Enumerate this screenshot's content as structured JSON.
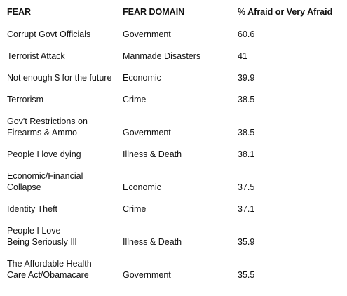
{
  "table": {
    "headers": [
      "FEAR",
      "FEAR DOMAIN",
      "% Afraid or Very Afraid"
    ],
    "rows": [
      {
        "fear": [
          "Corrupt Govt Officials"
        ],
        "domain": "Government",
        "percent": "60.6"
      },
      {
        "fear": [
          "Terrorist Attack"
        ],
        "domain": "Manmade Disasters",
        "percent": "41"
      },
      {
        "fear": [
          "Not enough $ for the future"
        ],
        "domain": "Economic",
        "percent": "39.9"
      },
      {
        "fear": [
          "Terrorism"
        ],
        "domain": "Crime",
        "percent": "38.5"
      },
      {
        "fear": [
          "Gov't Restrictions on",
          "Firearms & Ammo"
        ],
        "domain": "Government",
        "percent": "38.5"
      },
      {
        "fear": [
          "People I love dying"
        ],
        "domain": "Illness & Death",
        "percent": "38.1"
      },
      {
        "fear": [
          "Economic/Financial",
          "Collapse"
        ],
        "domain": "Economic",
        "percent": "37.5"
      },
      {
        "fear": [
          "Identity Theft"
        ],
        "domain": "Crime",
        "percent": "37.1"
      },
      {
        "fear": [
          "People I Love",
          "Being Seriously Ill"
        ],
        "domain": "Illness & Death",
        "percent": "35.9"
      },
      {
        "fear": [
          "The Affordable Health",
          "Care Act/Obamacare"
        ],
        "domain": "Government",
        "percent": "35.5"
      }
    ]
  }
}
